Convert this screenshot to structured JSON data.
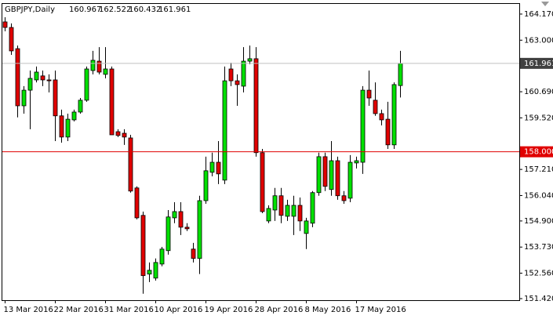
{
  "chart_data": {
    "type": "candlestick",
    "title": "GBPJPY,Daily",
    "ohlc_header": [
      160.967,
      162.522,
      160.432,
      161.961
    ],
    "categories": [
      "13 Mar 2016",
      null,
      null,
      null,
      null,
      null,
      null,
      null,
      "22 Mar 2016",
      null,
      null,
      null,
      null,
      null,
      null,
      null,
      "31 Mar 2016",
      null,
      null,
      null,
      null,
      null,
      null,
      null,
      "10 Apr 2016",
      null,
      null,
      null,
      null,
      null,
      null,
      null,
      "19 Apr 2016",
      null,
      null,
      null,
      null,
      null,
      null,
      null,
      "28 Apr 2016",
      null,
      null,
      null,
      null,
      null,
      null,
      null,
      "8 May 2016",
      null,
      null,
      null,
      null,
      null,
      null,
      null,
      "17 May 2016",
      null,
      null,
      null,
      null,
      null,
      null,
      null
    ],
    "open": [
      163.82,
      163.57,
      162.62,
      160.06,
      160.76,
      161.22,
      161.4,
      161.22,
      161.22,
      159.61,
      158.66,
      159.43,
      159.78,
      160.31,
      161.64,
      162.06,
      161.47,
      161.71,
      158.9,
      158.83,
      158.62,
      156.38,
      155.15,
      152.52,
      152.34,
      152.97,
      153.57,
      155.04,
      155.32,
      154.62,
      153.64,
      153.22,
      155.81,
      157.08,
      157.53,
      156.73,
      161.71,
      161.18,
      160.94,
      162.06,
      162.17,
      157.96,
      154.9,
      155.39,
      156.03,
      155.11,
      155.11,
      155.6,
      154.34,
      154.8,
      156.17,
      157.78,
      156.31,
      157.6,
      156.03,
      155.92,
      157.5,
      157.53,
      160.76,
      160.31,
      159.71,
      159.46,
      158.31,
      160.967
    ],
    "high": [
      164.03,
      163.75,
      162.76,
      160.94,
      161.64,
      161.82,
      161.64,
      161.47,
      161.64,
      159.89,
      159.71,
      159.89,
      160.41,
      161.82,
      162.52,
      162.69,
      162.69,
      161.82,
      159.01,
      159.01,
      158.76,
      156.45,
      155.32,
      153.04,
      153.22,
      153.74,
      155.39,
      155.74,
      155.74,
      154.8,
      153.92,
      156.03,
      157.78,
      157.96,
      158.48,
      161.82,
      161.99,
      161.47,
      162.69,
      162.76,
      162.69,
      158.13,
      155.6,
      156.38,
      156.38,
      155.85,
      156.03,
      155.95,
      155.04,
      156.24,
      157.96,
      157.96,
      158.48,
      157.78,
      156.24,
      157.85,
      157.78,
      160.94,
      161.64,
      161.11,
      159.89,
      160.24,
      161.11,
      162.522
    ],
    "low": [
      163.4,
      162.34,
      159.54,
      159.71,
      159.01,
      161.11,
      160.94,
      160.66,
      158.48,
      158.41,
      158.48,
      159.36,
      159.71,
      160.24,
      161.47,
      161.47,
      161.29,
      158.76,
      158.66,
      158.31,
      156.17,
      154.97,
      151.64,
      152.16,
      152.23,
      152.87,
      153.39,
      154.8,
      154.27,
      154.45,
      153.04,
      152.52,
      155.67,
      156.9,
      156.55,
      156.55,
      160.94,
      160.06,
      160.66,
      161.92,
      157.78,
      155.25,
      154.8,
      154.9,
      154.8,
      154.9,
      154.27,
      154.45,
      153.64,
      154.62,
      156.03,
      156.24,
      156.03,
      155.85,
      155.67,
      155.74,
      157.25,
      157.01,
      160.06,
      159.61,
      159.18,
      158.13,
      158.13,
      160.432
    ],
    "close": [
      163.57,
      162.52,
      160.06,
      160.76,
      161.29,
      161.57,
      161.22,
      161.18,
      159.61,
      158.66,
      159.46,
      159.78,
      160.31,
      161.71,
      162.1,
      161.57,
      161.71,
      158.76,
      158.73,
      158.66,
      156.24,
      155.04,
      152.45,
      152.69,
      153.04,
      153.64,
      155.08,
      155.32,
      154.62,
      154.55,
      153.22,
      155.81,
      157.15,
      157.53,
      157.01,
      161.18,
      161.18,
      161.01,
      162.06,
      162.17,
      157.96,
      155.32,
      155.46,
      156.03,
      155.15,
      155.6,
      155.6,
      154.9,
      154.9,
      156.17,
      157.78,
      156.45,
      157.6,
      156.03,
      155.81,
      157.53,
      157.6,
      160.76,
      160.41,
      159.71,
      159.43,
      158.31,
      161.01,
      161.961
    ],
    "up_color": "#00e000",
    "down_color": "#e00000",
    "ylim": [
      151.35,
      164.66
    ],
    "yticks": [
      {
        "value": 164.17,
        "label": "164.170"
      },
      {
        "value": 163,
        "label": "163.000"
      },
      {
        "value": 160.69,
        "label": "160.690"
      },
      {
        "value": 159.52,
        "label": "159.520"
      },
      {
        "value": 157.21,
        "label": "157.210"
      },
      {
        "value": 156.04,
        "label": "156.040"
      },
      {
        "value": 154.9,
        "label": "154.900"
      },
      {
        "value": 153.73,
        "label": "153.730"
      },
      {
        "value": 152.56,
        "label": "152.560"
      },
      {
        "value": 151.42,
        "label": "151.420"
      }
    ],
    "price_line": 161.961,
    "price_line_color": "#c0c0c0",
    "level_line": {
      "value": 158,
      "label": "158.000"
    },
    "level_color": "#e00000"
  }
}
